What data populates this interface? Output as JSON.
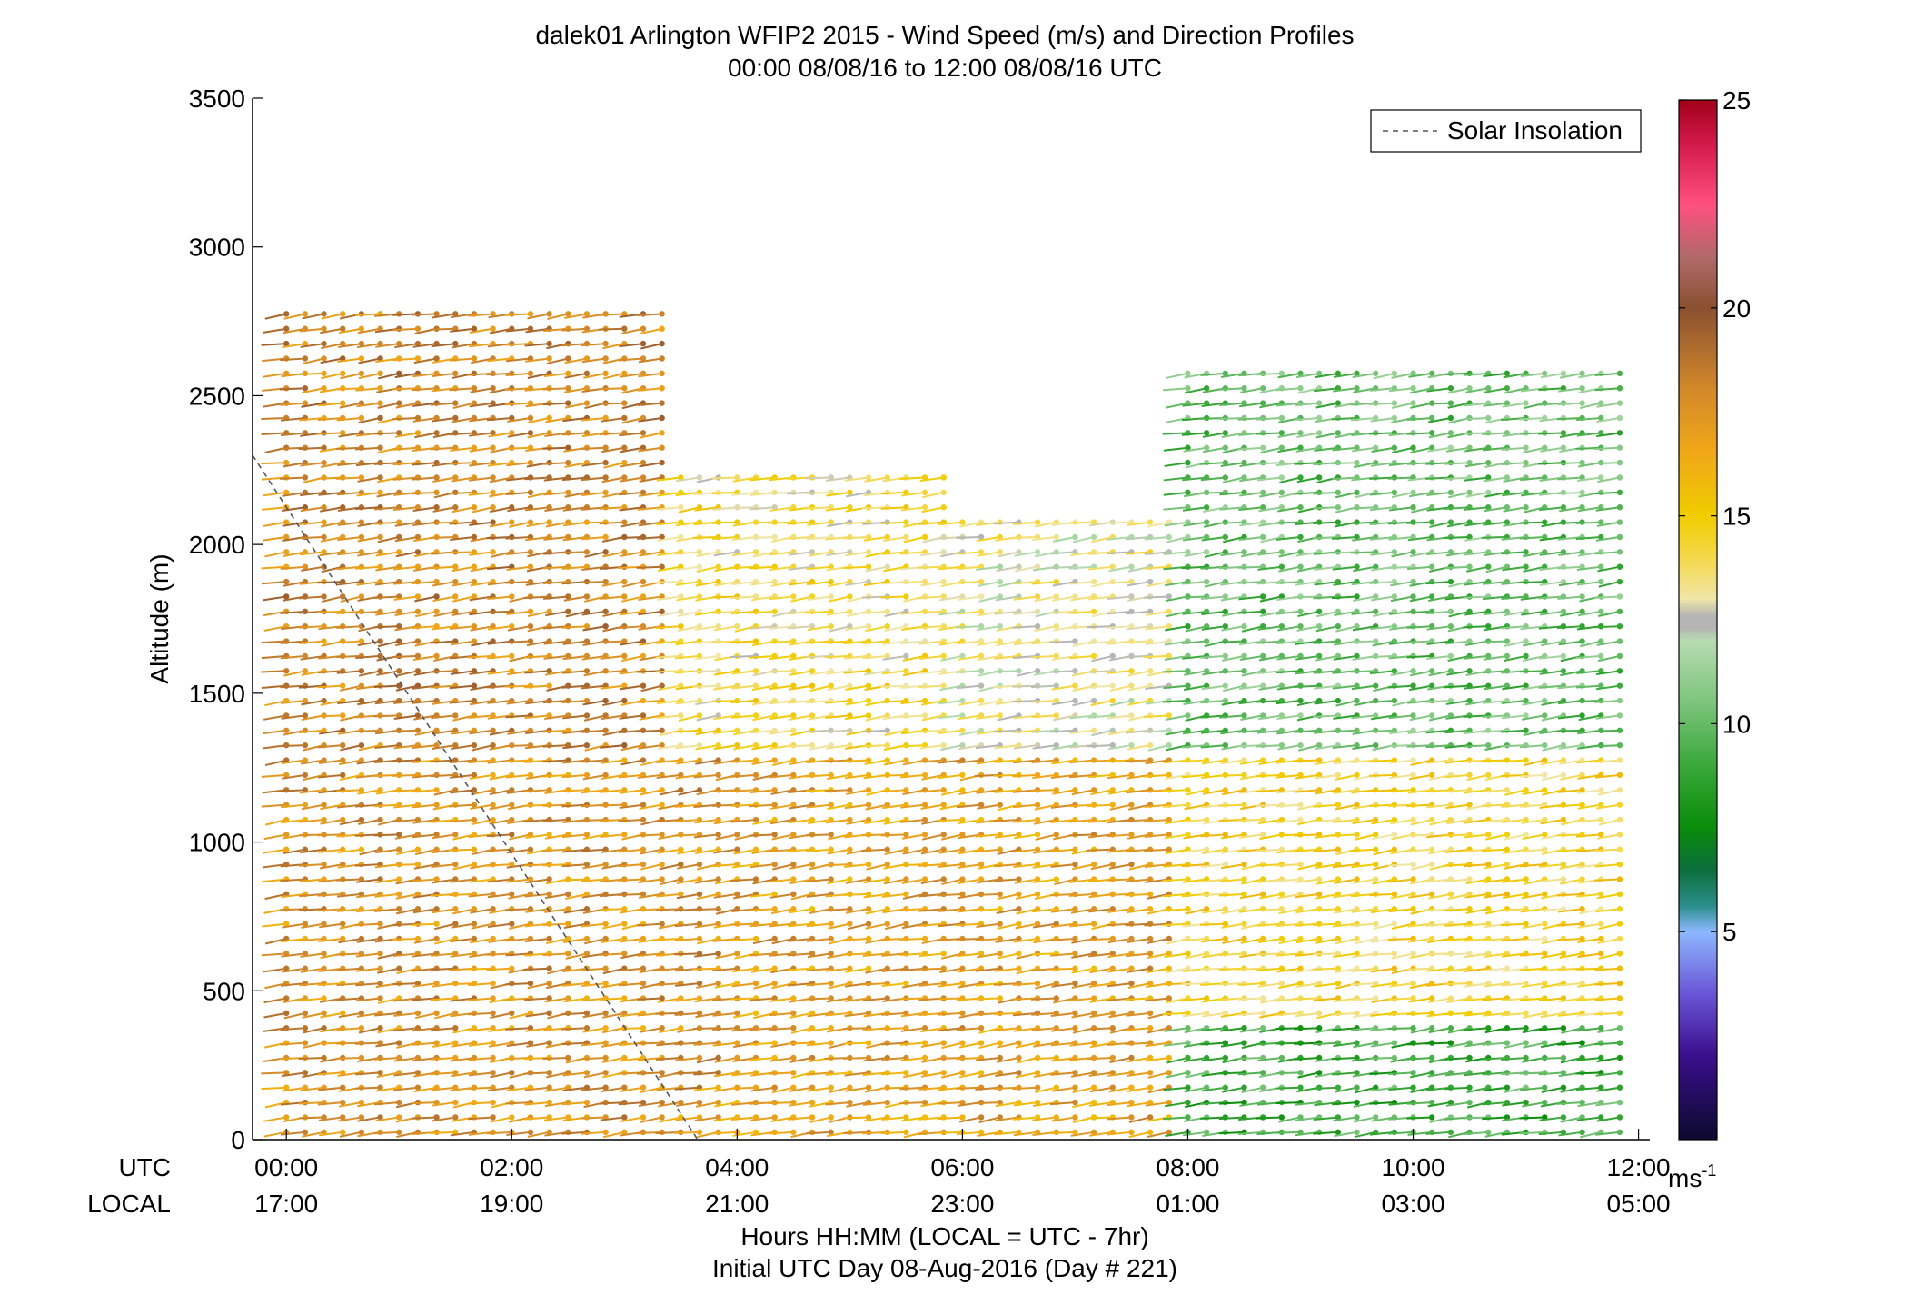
{
  "chart_data": {
    "type": "scatter",
    "title": "dalek01 Arlington WFIP2 2015 - Wind Speed (m/s) and Direction Profiles",
    "subtitle": "00:00 08/08/16 to 12:00 08/08/16  UTC",
    "ylabel": "Altitude (m)",
    "xlabel": "Hours HH:MM  (LOCAL = UTC - 7hr)",
    "xlabel2": "Initial UTC Day 08-Aug-2016 (Day # 221)",
    "utc_row_label": "UTC",
    "local_row_label": "LOCAL",
    "ylim": [
      0,
      3500
    ],
    "xlim_hours": [
      -0.3,
      12.1
    ],
    "y_ticks": [
      {
        "value": 0,
        "label": "0"
      },
      {
        "value": 500,
        "label": "500"
      },
      {
        "value": 1000,
        "label": "1000"
      },
      {
        "value": 1500,
        "label": "1500"
      },
      {
        "value": 2000,
        "label": "2000"
      },
      {
        "value": 2500,
        "label": "2500"
      },
      {
        "value": 3000,
        "label": "3000"
      },
      {
        "value": 3500,
        "label": "3500"
      }
    ],
    "x_ticks": [
      {
        "hour": 0,
        "utc": "00:00",
        "local": "17:00"
      },
      {
        "hour": 2,
        "utc": "02:00",
        "local": "19:00"
      },
      {
        "hour": 4,
        "utc": "04:00",
        "local": "21:00"
      },
      {
        "hour": 6,
        "utc": "06:00",
        "local": "23:00"
      },
      {
        "hour": 8,
        "utc": "08:00",
        "local": "01:00"
      },
      {
        "hour": 10,
        "utc": "10:00",
        "local": "03:00"
      },
      {
        "hour": 12,
        "utc": "12:00",
        "local": "05:00"
      }
    ],
    "legend": {
      "entries": [
        "Solar Insolation"
      ],
      "placement": "top-right"
    },
    "solar_insolation": {
      "points": [
        [
          -0.3,
          2300
        ],
        [
          3.65,
          0
        ]
      ]
    },
    "colorbar": {
      "range": [
        0,
        25
      ],
      "ticks": [
        5,
        10,
        15,
        20,
        25
      ],
      "unit_label": "ms",
      "unit_exponent": "-1",
      "stops": [
        {
          "v": 0,
          "c": "#0b0a2e"
        },
        {
          "v": 2,
          "c": "#3a0e8c"
        },
        {
          "v": 3.5,
          "c": "#6a55d6"
        },
        {
          "v": 5,
          "c": "#8db8ff"
        },
        {
          "v": 5.6,
          "c": "#2d8f8f"
        },
        {
          "v": 6.5,
          "c": "#0a6e3a"
        },
        {
          "v": 7.5,
          "c": "#0a8c0a"
        },
        {
          "v": 9,
          "c": "#3aa83a"
        },
        {
          "v": 10.5,
          "c": "#7cc47c"
        },
        {
          "v": 12,
          "c": "#b7dcb0"
        },
        {
          "v": 12.3,
          "c": "#b5b5b5"
        },
        {
          "v": 12.6,
          "c": "#b5b5b5"
        },
        {
          "v": 13,
          "c": "#f0e6a8"
        },
        {
          "v": 14,
          "c": "#f5d84a"
        },
        {
          "v": 15,
          "c": "#f0cc00"
        },
        {
          "v": 16.5,
          "c": "#f0a818"
        },
        {
          "v": 18,
          "c": "#d48a2a"
        },
        {
          "v": 20,
          "c": "#8a5030"
        },
        {
          "v": 21.2,
          "c": "#b06a6a"
        },
        {
          "v": 22.5,
          "c": "#ff4f7f"
        },
        {
          "v": 24,
          "c": "#d01848"
        },
        {
          "v": 25,
          "c": "#a00018"
        }
      ]
    },
    "altitude_step_m": 50,
    "time_step_min": 10,
    "wind_profiles": {
      "description_note": "",
      "regimes": [
        {
          "hours": [
            0,
            4
          ],
          "alt": [
            0,
            1300
          ],
          "speed": 17.5
        },
        {
          "hours": [
            4,
            8
          ],
          "alt": [
            0,
            1300
          ],
          "speed": 17.0
        },
        {
          "hours": [
            8,
            12
          ],
          "alt": [
            0,
            400
          ],
          "speed": 9.0
        },
        {
          "hours": [
            8,
            12
          ],
          "alt": [
            400,
            1300
          ],
          "speed": 14.5
        },
        {
          "hours": [
            0,
            3.5
          ],
          "alt": [
            1300,
            2800
          ],
          "speed": 18.0
        },
        {
          "hours": [
            3.5,
            6
          ],
          "alt": [
            1300,
            2250
          ],
          "speed": 14.0
        },
        {
          "hours": [
            6,
            8
          ],
          "alt": [
            1300,
            2100
          ],
          "speed": 13.0
        },
        {
          "hours": [
            8,
            12
          ],
          "alt": [
            1300,
            2600
          ],
          "speed": 10.0
        }
      ]
    }
  }
}
